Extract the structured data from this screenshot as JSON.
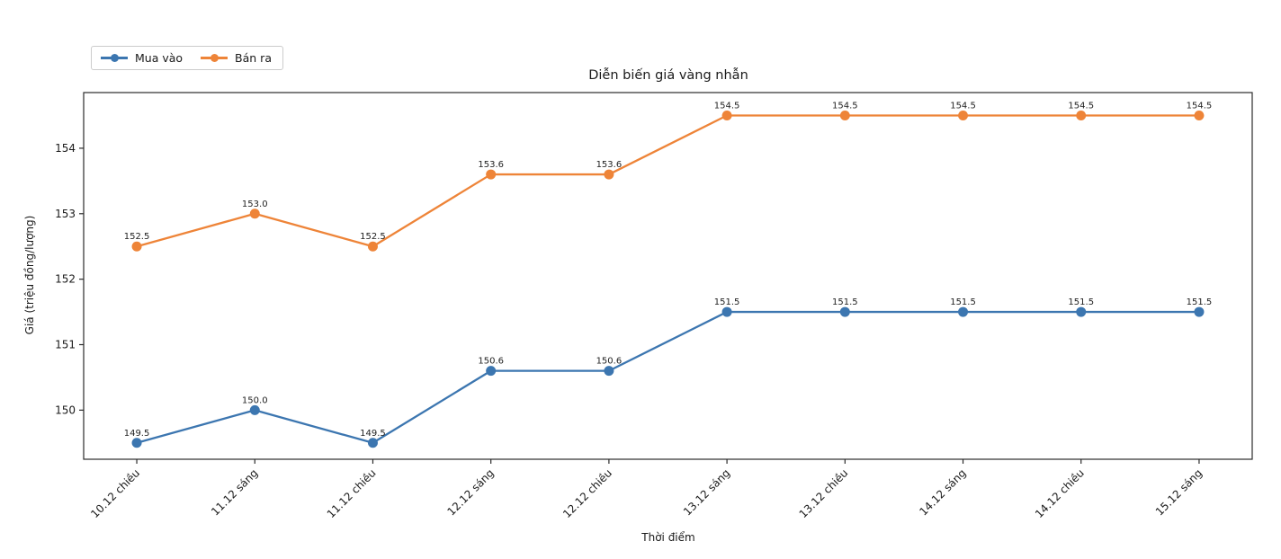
{
  "chart_data": {
    "type": "line",
    "title": "Diễn biến giá vàng nhẫn",
    "xlabel": "Thời điểm",
    "ylabel": "Giá (triệu đồng/lượng)",
    "categories": [
      "10.12 chiều",
      "11.12 sáng",
      "11.12 chiều",
      "12.12 sáng",
      "12.12 chiều",
      "13.12 sáng",
      "13.12 chiều",
      "14.12 sáng",
      "14.12 chiều",
      "15.12 sáng"
    ],
    "series": [
      {
        "name": "Mua vào",
        "color": "#3c76b0",
        "values": [
          149.5,
          150.0,
          149.5,
          150.6,
          150.6,
          151.5,
          151.5,
          151.5,
          151.5,
          151.5
        ],
        "point_labels": [
          "149.5",
          "150.0",
          "149.5",
          "150.6",
          "150.6",
          "151.5",
          "151.5",
          "151.5",
          "151.5",
          "151.5"
        ]
      },
      {
        "name": "Bán ra",
        "color": "#ee8438",
        "values": [
          152.5,
          153.0,
          152.5,
          153.6,
          153.6,
          154.5,
          154.5,
          154.5,
          154.5,
          154.5
        ],
        "point_labels": [
          "152.5",
          "153.0",
          "152.5",
          "153.6",
          "153.6",
          "154.5",
          "154.5",
          "154.5",
          "154.5",
          "154.5"
        ]
      }
    ],
    "yticks": [
      "150",
      "151",
      "152",
      "153",
      "154"
    ],
    "ylim": [
      149.25,
      154.85
    ],
    "grid": false,
    "legend_position": "top-left",
    "frame_color": "#2b2b2b",
    "text_color": "#1a1a1a",
    "annotation_color": "#222222"
  }
}
